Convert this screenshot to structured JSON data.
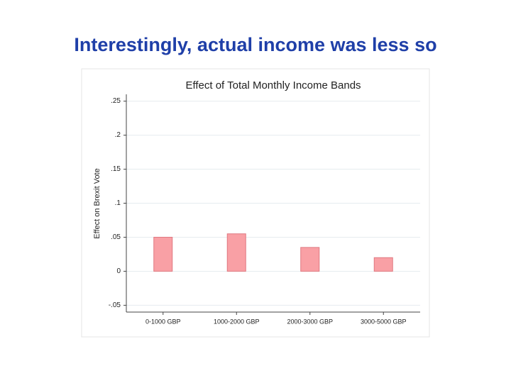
{
  "slide_title": "Interestingly, actual income was less so",
  "chart_data": {
    "type": "bar",
    "title": "Effect of Total Monthly Income Bands",
    "y_label": "Effect on Brexit Vote",
    "categories": [
      "0-1000 GBP",
      "1000-2000 GBP",
      "2000-3000 GBP",
      "3000-5000 GBP"
    ],
    "values": [
      0.05,
      0.055,
      0.035,
      0.02
    ],
    "color": "#f9a0a5",
    "ylim": [
      -0.06,
      0.26
    ],
    "yticks": [
      {
        "value": -0.05,
        "label": "-.05"
      },
      0,
      {
        "value": 0.05,
        "label": ".05"
      },
      {
        "value": 0.1,
        "label": ".1"
      },
      {
        "value": 0.15,
        "label": ".15"
      },
      {
        "value": 0.2,
        "label": ".2"
      },
      {
        "value": 0.25,
        "label": ".25"
      }
    ],
    "grid": true
  }
}
